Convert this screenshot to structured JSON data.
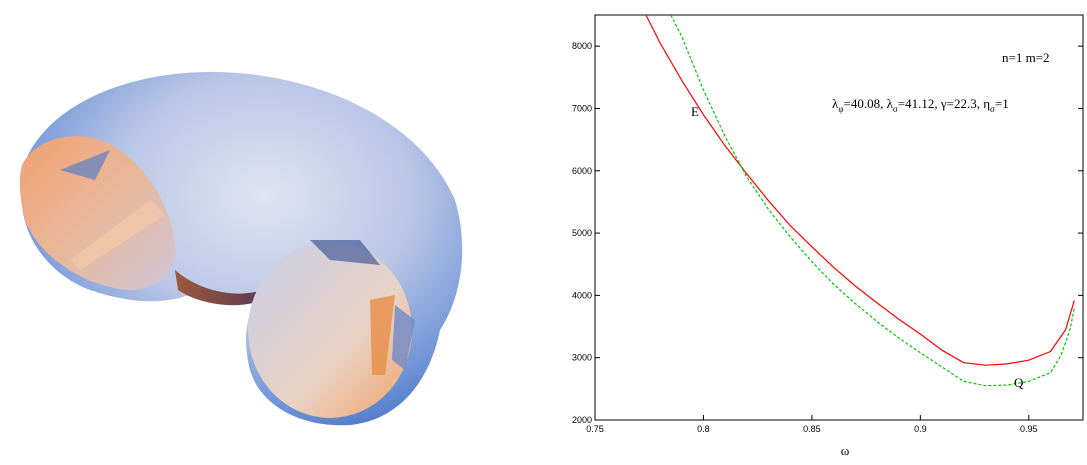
{
  "chart_data": {
    "type": "line",
    "title": "",
    "xlabel": "ω",
    "ylabel": "",
    "xlim": [
      0.75,
      0.975
    ],
    "ylim": [
      2000,
      8500
    ],
    "xticks": [
      "0.75",
      "0.8",
      "0.85",
      "0.9",
      "0.95"
    ],
    "yticks": [
      "2000",
      "3000",
      "4000",
      "5000",
      "6000",
      "7000",
      "8000"
    ],
    "grid": false,
    "annotations": {
      "mode": "n=1 m=2",
      "params": {
        "lambda_phi": "λ",
        "lambda_phi_sub": "φ",
        "lambda_phi_val": "=40.08, ",
        "lambda_sigma": "λ",
        "lambda_sigma_sub": "σ",
        "lambda_sigma_val": "=41.12, γ=22.3, ",
        "eta_sigma": "η",
        "eta_sigma_sub": "σ",
        "eta_sigma_val": "=1"
      },
      "curve_label_E": "E",
      "curve_label_Q": "Q"
    },
    "series": [
      {
        "color": "#ff0000",
        "dash": "solid",
        "x": [
          0.7735,
          0.78,
          0.79,
          0.8,
          0.81,
          0.82,
          0.83,
          0.84,
          0.85,
          0.86,
          0.87,
          0.88,
          0.89,
          0.9,
          0.91,
          0.92,
          0.93,
          0.94,
          0.95,
          0.96,
          0.967,
          0.971
        ],
        "y": [
          8500,
          8050,
          7450,
          6900,
          6400,
          5950,
          5520,
          5120,
          4780,
          4450,
          4150,
          3880,
          3620,
          3380,
          3120,
          2920,
          2880,
          2900,
          2960,
          3100,
          3450,
          3920
        ]
      },
      {
        "color": "#00c800",
        "dash": "dashed",
        "x": [
          0.785,
          0.79,
          0.8,
          0.81,
          0.82,
          0.83,
          0.84,
          0.85,
          0.86,
          0.87,
          0.88,
          0.89,
          0.9,
          0.91,
          0.92,
          0.93,
          0.94,
          0.95,
          0.96,
          0.965,
          0.969,
          0.971
        ],
        "y": [
          8500,
          8150,
          7300,
          6550,
          5900,
          5380,
          4940,
          4540,
          4180,
          3870,
          3580,
          3320,
          3080,
          2850,
          2620,
          2550,
          2560,
          2620,
          2760,
          3050,
          3450,
          3800
        ]
      }
    ]
  },
  "colors": {
    "torus_light": "#cfd6ec",
    "torus_blue": "#4f7fd0",
    "torus_orange": "#e8905a",
    "torus_dark": "#8a4a2a"
  }
}
